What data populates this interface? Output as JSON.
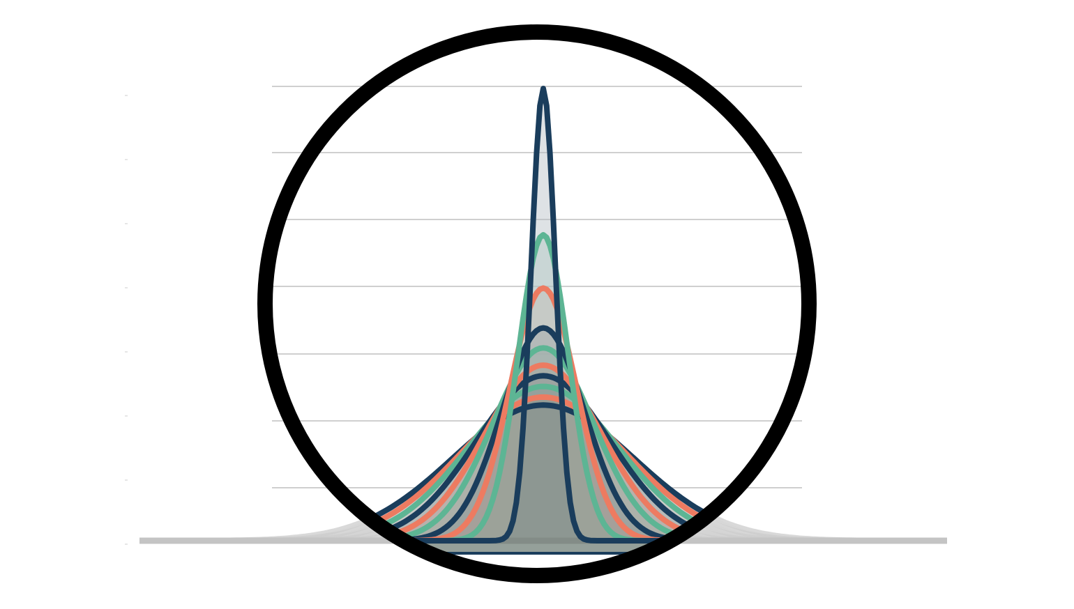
{
  "chart_data": {
    "type": "area",
    "title": "",
    "xlabel": "",
    "ylabel": "",
    "x_range": [
      -4,
      4
    ],
    "ylim": [
      0,
      3.5
    ],
    "grid": true,
    "legend": "none",
    "distribution": "normal",
    "mean": 0,
    "series": [
      {
        "sigma": 0.12,
        "peak": 3.4,
        "color": "#1a3d5c"
      },
      {
        "sigma": 0.25,
        "peak": 2.3,
        "color": "#5db594"
      },
      {
        "sigma": 0.33,
        "peak": 1.9,
        "color": "#ed7b61"
      },
      {
        "sigma": 0.41,
        "peak": 1.6,
        "color": "#1a3d5c"
      },
      {
        "sigma": 0.5,
        "peak": 1.45,
        "color": "#5db594"
      },
      {
        "sigma": 0.58,
        "peak": 1.32,
        "color": "#ed7b61"
      },
      {
        "sigma": 0.66,
        "peak": 1.24,
        "color": "#1a3d5c"
      },
      {
        "sigma": 0.74,
        "peak": 1.16,
        "color": "#5db594"
      },
      {
        "sigma": 0.82,
        "peak": 1.08,
        "color": "#ed7b61"
      },
      {
        "sigma": 0.9,
        "peak": 1.02,
        "color": "#1a3d5c"
      }
    ],
    "lens": {
      "frame_color": "#000000",
      "outside_color": "#cccccc"
    }
  }
}
